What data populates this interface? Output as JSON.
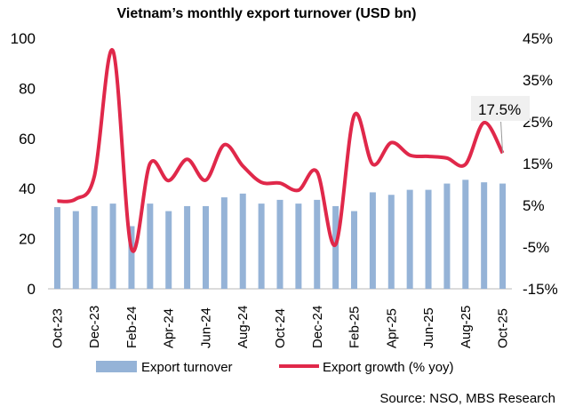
{
  "chart_data": {
    "type": "bar+line",
    "title": "Vietnam’s monthly export turnover (USD bn)",
    "categories": [
      "Oct-23",
      "Nov-23",
      "Dec-23",
      "Jan-24",
      "Feb-24",
      "Mar-24",
      "Apr-24",
      "May-24",
      "Jun-24",
      "Jul-24",
      "Aug-24",
      "Sep-24",
      "Oct-24",
      "Nov-24",
      "Dec-24",
      "Jan-25",
      "Feb-25",
      "Mar-25",
      "Apr-25",
      "May-25",
      "Jun-25",
      "Jul-25",
      "Aug-25",
      "Sep-25",
      "Oct-25"
    ],
    "x_tick_labels": [
      "Oct-23",
      "Dec-23",
      "Feb-24",
      "Apr-24",
      "Jun-24",
      "Aug-24",
      "Oct-24",
      "Dec-24",
      "Feb-25",
      "Apr-25",
      "Jun-25",
      "Aug-25",
      "Oct-25"
    ],
    "series": [
      {
        "name": "Export turnover",
        "type": "bar",
        "axis": "left",
        "color": "#95B3D7",
        "values": [
          32.6,
          31,
          33,
          34,
          25,
          34,
          31,
          33,
          33,
          36.5,
          38,
          34,
          35.5,
          34,
          35.5,
          33,
          31,
          38.5,
          37.5,
          39.5,
          39.5,
          42,
          43.5,
          42.5,
          42
        ]
      },
      {
        "name": "Export growth (% yoy)",
        "type": "line",
        "axis": "right",
        "color": "#E0284A",
        "values": [
          6,
          6.5,
          12,
          42,
          -5.4,
          15,
          10.9,
          16,
          11,
          19.5,
          14.4,
          10.5,
          10.3,
          8.6,
          13,
          -4.4,
          26.5,
          14.8,
          20,
          17,
          16.7,
          16.3,
          14.8,
          24.8,
          17.5
        ]
      }
    ],
    "y_left": {
      "lim": [
        0,
        100
      ],
      "ticks": [
        "0",
        "20",
        "40",
        "60",
        "80",
        "100"
      ]
    },
    "y_right": {
      "lim": [
        -15,
        45
      ],
      "ticks": [
        "-15%",
        "-5%",
        "5%",
        "15%",
        "25%",
        "35%",
        "45%"
      ]
    },
    "annotation": "17.5%",
    "legend_position": "bottom",
    "source": "Source: NSO, MBS Research"
  }
}
